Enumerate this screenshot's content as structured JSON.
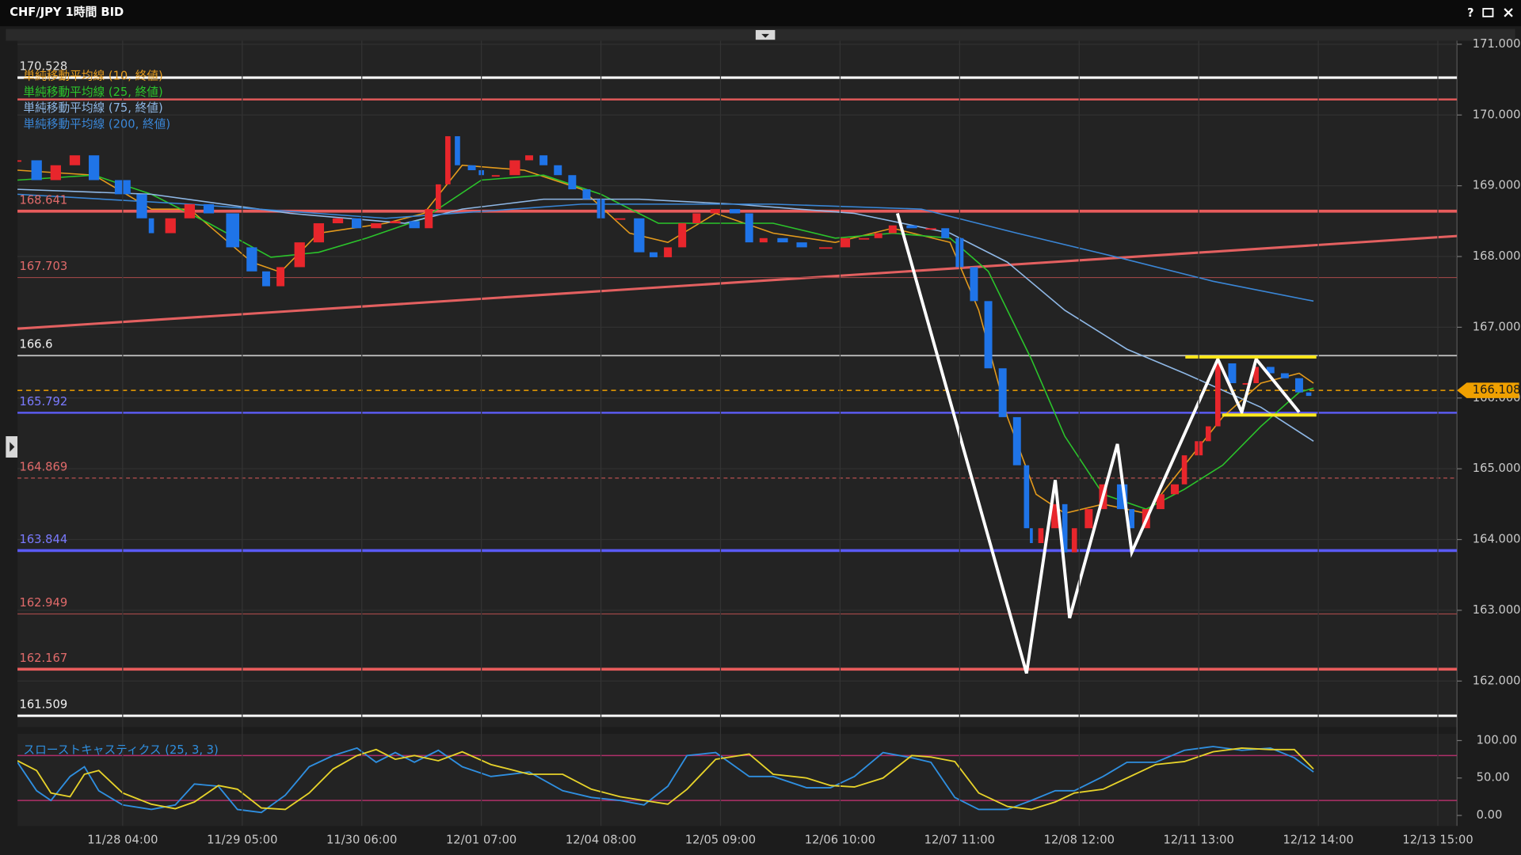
{
  "window": {
    "title": "CHF/JPY 1時間 BID",
    "help": "?"
  },
  "chart_data": [
    {
      "type": "candlestick",
      "x": [
        3,
        7,
        11,
        15,
        19,
        25,
        29,
        31,
        35,
        39,
        43,
        48,
        52,
        55,
        58,
        62,
        66,
        70,
        74,
        78,
        82,
        86,
        89,
        91,
        93,
        95,
        98,
        100,
        103,
        107,
        110,
        113,
        116,
        119,
        122,
        125,
        129,
        133,
        136,
        139,
        142,
        145,
        149,
        153,
        156,
        159,
        163,
        167,
        172,
        176,
        180,
        183,
        186,
        190,
        194,
        197,
        200,
        203,
        206,
        209,
        212,
        214,
        215,
        217,
        220,
        222,
        224,
        227,
        230,
        234,
        236,
        239,
        242,
        245,
        247,
        250,
        252,
        254,
        257,
        260,
        262,
        265,
        268,
        271,
        273
      ],
      "close": [
        169.36,
        169.08,
        169.29,
        169.43,
        169.08,
        168.88,
        168.54,
        168.33,
        168.54,
        168.74,
        168.61,
        168.13,
        167.79,
        167.58,
        167.85,
        168.2,
        168.47,
        168.54,
        168.4,
        168.47,
        168.5,
        168.4,
        168.67,
        169.02,
        169.7,
        169.29,
        169.22,
        169.15,
        169.15,
        169.36,
        169.43,
        169.29,
        169.15,
        168.95,
        168.81,
        168.54,
        168.54,
        168.06,
        167.99,
        168.13,
        168.47,
        168.61,
        168.67,
        168.61,
        168.2,
        168.26,
        168.2,
        168.13,
        168.13,
        168.26,
        168.26,
        168.33,
        168.44,
        168.4,
        168.4,
        168.26,
        167.85,
        167.37,
        166.42,
        165.73,
        165.05,
        164.16,
        163.95,
        164.16,
        164.5,
        163.82,
        164.16,
        164.43,
        164.78,
        164.43,
        164.16,
        164.43,
        164.64,
        164.78,
        165.19,
        165.39,
        165.6,
        166.49,
        166.21,
        166.21,
        166.44,
        166.35,
        166.28,
        166.08,
        166.03
      ],
      "up_color": "#e8262c",
      "down_color": "#1f74e8",
      "xlim": [
        3,
        304
      ],
      "ylim": [
        161.35,
        171.05
      ],
      "xticks": [
        {
          "value": 25,
          "label": "11/28 04:00"
        },
        {
          "value": 50,
          "label": "11/29 05:00"
        },
        {
          "value": 75,
          "label": "11/30 06:00"
        },
        {
          "value": 100,
          "label": "12/01 07:00"
        },
        {
          "value": 125,
          "label": "12/04 08:00"
        },
        {
          "value": 150,
          "label": "12/05 09:00"
        },
        {
          "value": 175,
          "label": "12/06 10:00"
        },
        {
          "value": 200,
          "label": "12/07 11:00"
        },
        {
          "value": 225,
          "label": "12/08 12:00"
        },
        {
          "value": 250,
          "label": "12/11 13:00"
        },
        {
          "value": 275,
          "label": "12/12 14:00"
        },
        {
          "value": 300,
          "label": "12/13 15:00"
        }
      ],
      "yticks": [
        {
          "value": 162,
          "label": "162.000"
        },
        {
          "value": 163,
          "label": "163.000"
        },
        {
          "value": 164,
          "label": "164.000"
        },
        {
          "value": 165,
          "label": "165.000"
        },
        {
          "value": 166,
          "label": "166.000"
        },
        {
          "value": 167,
          "label": "167.000"
        },
        {
          "value": 168,
          "label": "168.000"
        },
        {
          "value": 169,
          "label": "169.000"
        },
        {
          "value": 170,
          "label": "170.000"
        },
        {
          "value": 171,
          "label": "171.000"
        }
      ],
      "series": [
        {
          "name": "単純移動平均線 (10, 終値)",
          "color": "#e39a1c",
          "x": [
            3,
            19,
            31,
            39,
            52,
            58,
            66,
            80,
            88,
            96,
            109,
            121,
            131,
            139,
            149,
            161,
            174,
            186,
            198,
            204,
            210,
            216,
            222,
            230,
            239,
            247,
            255,
            263,
            271,
            274
          ],
          "values": [
            169.22,
            169.15,
            168.67,
            168.67,
            167.92,
            167.78,
            168.33,
            168.47,
            168.61,
            169.29,
            169.22,
            168.95,
            168.33,
            168.2,
            168.61,
            168.33,
            168.2,
            168.4,
            168.2,
            167.24,
            165.73,
            164.64,
            164.37,
            164.5,
            164.37,
            165.05,
            165.73,
            166.21,
            166.35,
            166.21
          ]
        },
        {
          "name": "単純移動平均線 (25, 終値)",
          "color": "#2bc42b",
          "x": [
            3,
            19,
            31,
            43,
            56,
            66,
            76,
            88,
            100,
            113,
            125,
            137,
            149,
            161,
            174,
            186,
            198,
            206,
            215,
            222,
            230,
            239,
            247,
            255,
            263,
            271,
            274
          ],
          "values": [
            169.08,
            169.15,
            168.88,
            168.47,
            167.99,
            168.06,
            168.26,
            168.54,
            169.08,
            169.15,
            168.88,
            168.47,
            168.47,
            168.47,
            168.26,
            168.33,
            168.26,
            167.79,
            166.55,
            165.46,
            164.64,
            164.43,
            164.71,
            165.05,
            165.6,
            166.08,
            166.14
          ]
        },
        {
          "name": "単純移動平均線 (75, 終値)",
          "color": "#8fb8e6",
          "x": [
            3,
            31,
            60,
            84,
            96,
            113,
            133,
            153,
            178,
            198,
            210,
            222,
            235,
            247,
            263,
            274
          ],
          "values": [
            168.95,
            168.88,
            168.61,
            168.47,
            168.67,
            168.81,
            168.81,
            168.74,
            168.61,
            168.33,
            167.92,
            167.24,
            166.69,
            166.35,
            165.87,
            165.39
          ]
        },
        {
          "name": "単純移動平均線 (200, 終値)",
          "color": "#3a86d6",
          "x": [
            3,
            39,
            80,
            121,
            161,
            192,
            212,
            233,
            253,
            274
          ],
          "values": [
            168.88,
            168.74,
            168.54,
            168.74,
            168.74,
            168.67,
            168.33,
            167.99,
            167.65,
            167.37
          ]
        }
      ],
      "levels": [
        {
          "value": 170.528,
          "color": "#ffffff",
          "label_color": "#e0e0e0",
          "width": 2.5
        },
        {
          "value": 170.22,
          "color": "#e05a5a",
          "width": 2,
          "labeled": false
        },
        {
          "value": 168.641,
          "color": "#e85c5c",
          "label_color": "#e06a6a",
          "width": 3
        },
        {
          "value": 167.703,
          "color": "#9a4545",
          "label_color": "#e06a6a",
          "width": 1
        },
        {
          "value": 166.6,
          "color": "#bdbdbd",
          "label_color": "#f0f0f0",
          "width": 1.5
        },
        {
          "value": 165.792,
          "color": "#5b5bf0",
          "label_color": "#7a7aff",
          "width": 2
        },
        {
          "value": 164.869,
          "color": "#b85050",
          "label_color": "#e06a6a",
          "width": 1,
          "dash": true
        },
        {
          "value": 163.844,
          "color": "#5a5af5",
          "label_color": "#7a7aff",
          "width": 3
        },
        {
          "value": 162.949,
          "color": "#a04848",
          "label_color": "#e06a6a",
          "width": 1
        },
        {
          "value": 162.167,
          "color": "#e85c5c",
          "label_color": "#e06a6a",
          "width": 3
        },
        {
          "value": 161.509,
          "color": "#ffffff",
          "label_color": "#f0f0f0",
          "width": 2.5
        }
      ],
      "current": {
        "value": 166.108,
        "color": "#f0a000"
      },
      "trendline": {
        "x": [
          3,
          304
        ],
        "values": [
          166.98,
          168.29
        ],
        "color": "#e36060"
      },
      "annotations": [
        {
          "color": "#ffffff",
          "x": [
            187,
            214,
            220,
            223,
            233,
            236,
            254,
            259,
            262,
            271
          ],
          "values": [
            168.61,
            162.11,
            164.84,
            162.89,
            165.35,
            163.82,
            166.55,
            165.8,
            166.55,
            165.8
          ]
        },
        {
          "color": "#ffe81a",
          "x": [
            247.2,
            274.6
          ],
          "values": [
            166.58,
            166.58
          ]
        },
        {
          "color": "#ffe81a",
          "x": [
            254.9,
            274.6
          ],
          "values": [
            165.76,
            165.76
          ]
        }
      ]
    },
    {
      "type": "line",
      "title": "スローストキャスティクス (25, 3, 3)",
      "x": [
        3,
        7,
        10,
        14,
        17,
        20,
        25,
        31,
        36,
        40,
        45,
        49,
        54,
        59,
        64,
        69,
        74,
        78,
        82,
        86,
        91,
        96,
        102,
        110,
        117,
        123,
        129,
        134,
        139,
        143,
        149,
        156,
        161,
        168,
        173,
        178,
        184,
        190,
        194,
        199,
        204,
        210,
        215,
        220,
        224,
        230,
        235,
        241,
        247,
        253,
        259,
        265,
        270,
        274
      ],
      "series": [
        {
          "color": "#2f8fe0",
          "values": [
            71,
            33,
            20,
            52,
            65,
            33,
            14,
            8,
            14,
            42,
            39,
            8,
            4,
            27,
            65,
            80,
            90,
            71,
            84,
            71,
            87,
            65,
            52,
            58,
            33,
            24,
            20,
            14,
            39,
            80,
            84,
            52,
            52,
            37,
            37,
            52,
            84,
            77,
            71,
            24,
            8,
            8,
            20,
            33,
            33,
            52,
            71,
            71,
            87,
            92,
            87,
            90,
            77,
            58
          ]
        },
        {
          "color": "#e6d22a",
          "values": [
            73,
            60,
            30,
            25,
            55,
            60,
            30,
            15,
            9,
            18,
            40,
            35,
            10,
            8,
            30,
            62,
            80,
            88,
            75,
            80,
            73,
            85,
            68,
            55,
            55,
            35,
            25,
            20,
            15,
            35,
            75,
            82,
            55,
            50,
            40,
            38,
            50,
            80,
            78,
            72,
            30,
            12,
            8,
            18,
            30,
            35,
            50,
            68,
            72,
            85,
            90,
            88,
            88,
            62
          ]
        }
      ],
      "levels": [
        80,
        20
      ],
      "level_color": "#b0306a",
      "xlim": [
        3,
        304
      ],
      "ylim": [
        -14,
        109
      ],
      "yticks": [
        {
          "value": 0,
          "label": "0.00"
        },
        {
          "value": 50,
          "label": "50.00"
        },
        {
          "value": 100,
          "label": "100.00"
        }
      ]
    }
  ]
}
